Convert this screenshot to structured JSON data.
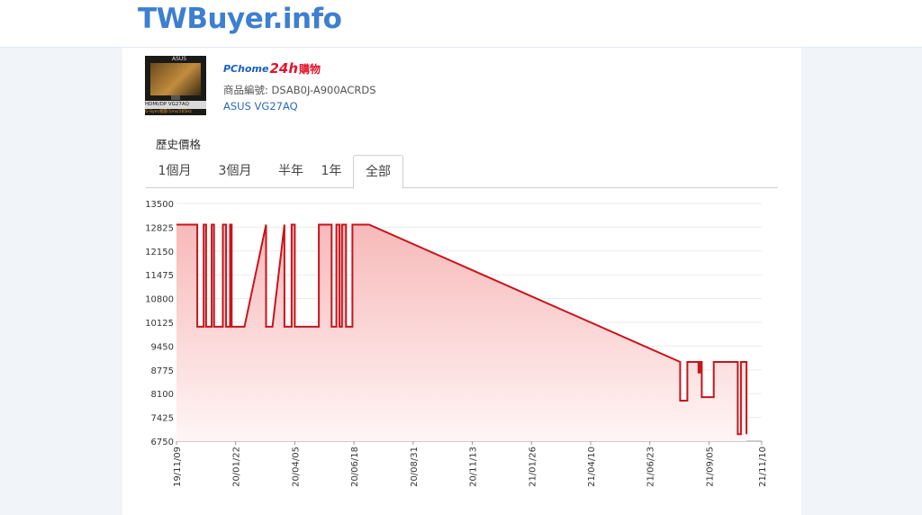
{
  "site": {
    "title": "TWBuyer.info"
  },
  "product": {
    "thumb": {
      "brand": "ASUS",
      "strip": "HDMI/DP VG27AQ",
      "strip2": "G-Sync相容/1ms/165Hz"
    },
    "store": {
      "pc": "PChome",
      "h24": "24h",
      "gw": "購物"
    },
    "id_label": "商品編號:",
    "id_value": "DSAB0J-A900ACRDS",
    "name": "ASUS VG27AQ"
  },
  "history": {
    "title": "歷史價格",
    "tabs": [
      "1個月",
      "3個月",
      "半年",
      "1年",
      "全部"
    ],
    "active_tab": 4
  },
  "colors": {
    "line": "#c8141b",
    "fill_top": "#f7b9b9",
    "fill_bottom": "#fff5f5",
    "accent": "#3d7fd0"
  },
  "chart_data": {
    "type": "area",
    "title": "",
    "xlabel": "",
    "ylabel": "",
    "ylim": [
      6750,
      13500
    ],
    "yticks": [
      13500,
      12825,
      12150,
      11475,
      10800,
      10125,
      9450,
      8775,
      8100,
      7425,
      6750
    ],
    "xlim": [
      "2019-11-09",
      "2021-11-10"
    ],
    "xticks": [
      "19/11/09",
      "20/01/22",
      "20/04/05",
      "20/06/18",
      "20/08/31",
      "20/11/13",
      "21/01/26",
      "21/04/10",
      "21/06/23",
      "21/09/05",
      "21/11/10"
    ],
    "grid": true,
    "series": [
      {
        "points": [
          [
            "2019-11-09",
            12900
          ],
          [
            "2019-12-05",
            12900
          ],
          [
            "2019-12-05",
            10000
          ],
          [
            "2019-12-13",
            10000
          ],
          [
            "2019-12-13",
            12900
          ],
          [
            "2019-12-16",
            12900
          ],
          [
            "2019-12-16",
            10000
          ],
          [
            "2019-12-23",
            10000
          ],
          [
            "2019-12-23",
            12900
          ],
          [
            "2019-12-26",
            12900
          ],
          [
            "2019-12-26",
            10000
          ],
          [
            "2020-01-06",
            10000
          ],
          [
            "2020-01-06",
            12900
          ],
          [
            "2020-01-10",
            12900
          ],
          [
            "2020-01-10",
            10000
          ],
          [
            "2020-01-15",
            10000
          ],
          [
            "2020-01-15",
            12900
          ],
          [
            "2020-01-17",
            12900
          ],
          [
            "2020-01-17",
            10000
          ],
          [
            "2020-02-02",
            10000
          ],
          [
            "2020-02-29",
            12900
          ],
          [
            "2020-02-29",
            10000
          ],
          [
            "2020-03-08",
            10000
          ],
          [
            "2020-03-23",
            12900
          ],
          [
            "2020-03-23",
            10000
          ],
          [
            "2020-04-01",
            10000
          ],
          [
            "2020-04-01",
            12900
          ],
          [
            "2020-04-05",
            12900
          ],
          [
            "2020-04-05",
            10000
          ],
          [
            "2020-05-05",
            10000
          ],
          [
            "2020-05-05",
            12900
          ],
          [
            "2020-05-21",
            12900
          ],
          [
            "2020-05-21",
            10000
          ],
          [
            "2020-05-27",
            10000
          ],
          [
            "2020-05-27",
            12900
          ],
          [
            "2020-05-31",
            12900
          ],
          [
            "2020-05-31",
            10000
          ],
          [
            "2020-06-03",
            10000
          ],
          [
            "2020-06-03",
            12900
          ],
          [
            "2020-06-08",
            12900
          ],
          [
            "2020-06-08",
            10000
          ],
          [
            "2020-06-16",
            10000
          ],
          [
            "2020-06-16",
            12900
          ],
          [
            "2020-07-07",
            12900
          ],
          [
            "2021-07-31",
            9000
          ],
          [
            "2021-07-31",
            7900
          ],
          [
            "2021-08-09",
            7900
          ],
          [
            "2021-08-09",
            9000
          ],
          [
            "2021-08-23",
            9000
          ],
          [
            "2021-08-23",
            8700
          ],
          [
            "2021-08-25",
            8700
          ],
          [
            "2021-08-25",
            9000
          ],
          [
            "2021-08-27",
            9000
          ],
          [
            "2021-08-27",
            8000
          ],
          [
            "2021-09-11",
            8000
          ],
          [
            "2021-09-11",
            9000
          ],
          [
            "2021-10-11",
            9000
          ],
          [
            "2021-10-11",
            6950
          ],
          [
            "2021-10-15",
            6950
          ],
          [
            "2021-10-15",
            9000
          ],
          [
            "2021-10-22",
            9000
          ],
          [
            "2021-10-22",
            6950
          ]
        ]
      }
    ]
  }
}
